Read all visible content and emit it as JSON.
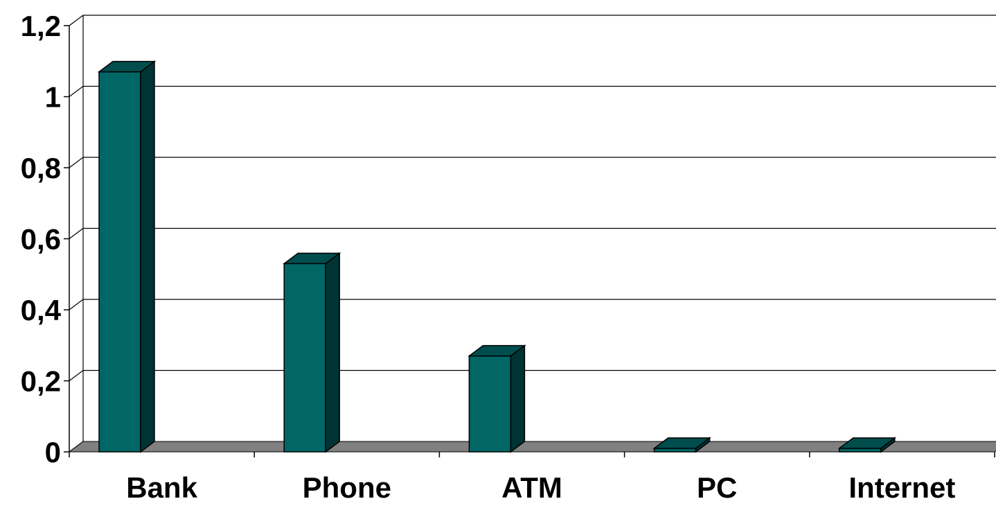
{
  "chart_data": {
    "type": "bar",
    "style": "3d-column",
    "categories": [
      "Bank",
      "Phone",
      "ATM",
      "PC",
      "Internet"
    ],
    "values": [
      1.07,
      0.53,
      0.27,
      0.01,
      0.01
    ],
    "ylim": [
      0,
      1.2
    ],
    "yticks": [
      "0",
      "0,2",
      "0,4",
      "0,6",
      "0,8",
      "1",
      "1,2"
    ],
    "ytick_values": [
      0,
      0.2,
      0.4,
      0.6,
      0.8,
      1.0,
      1.2
    ],
    "grid": true,
    "legend": "none",
    "title": "",
    "xlabel": "",
    "ylabel": "",
    "colors": {
      "bar_front": "#006666",
      "bar_top": "#004d4d",
      "bar_side": "#003333",
      "floor": "#808080",
      "gridline": "#000000"
    }
  }
}
